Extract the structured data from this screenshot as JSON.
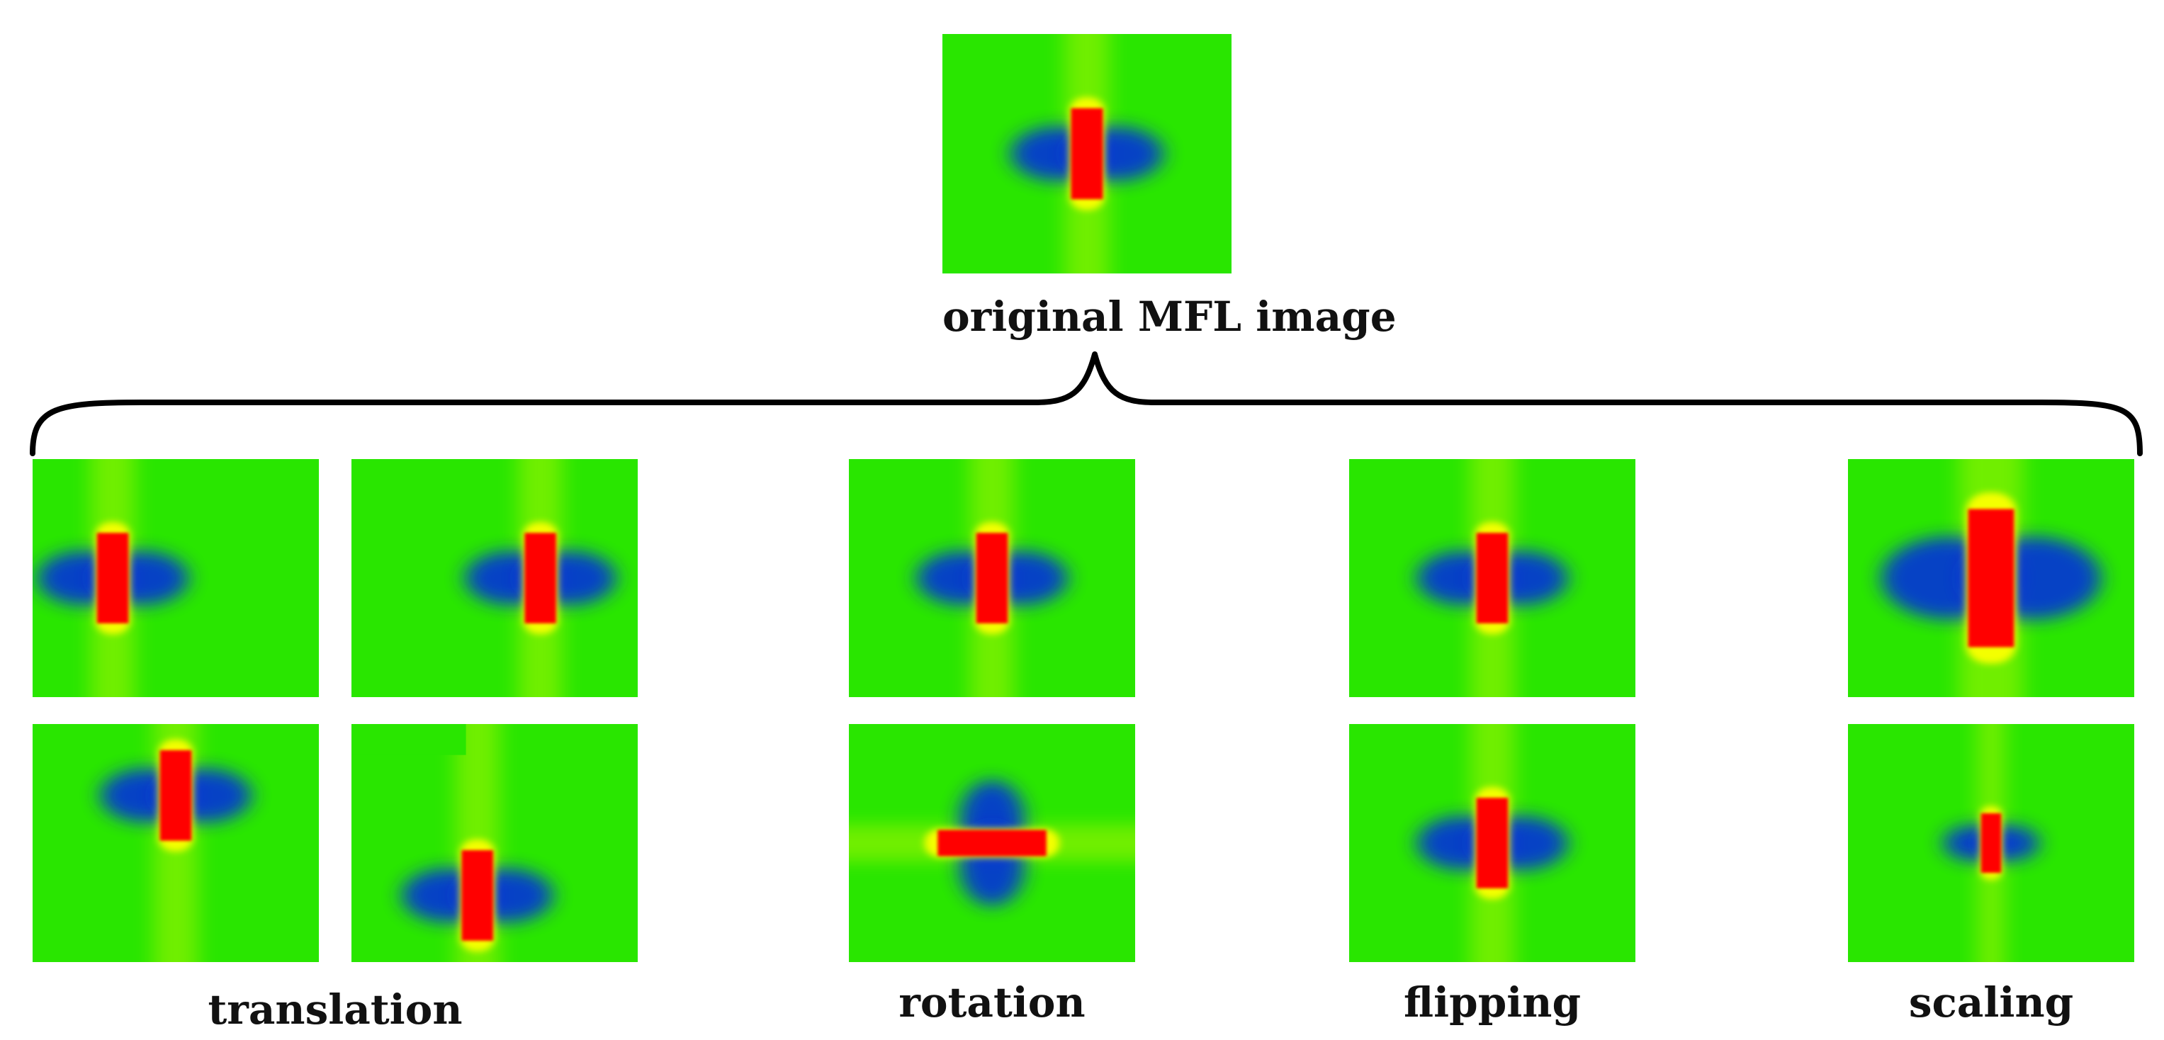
{
  "original": {
    "label": "original MFL image"
  },
  "groups": [
    {
      "key": "translation",
      "label": "translation"
    },
    {
      "key": "rotation",
      "label": "rotation"
    },
    {
      "key": "flipping",
      "label": "flipping"
    },
    {
      "key": "scaling",
      "label": "scaling"
    }
  ],
  "colors": {
    "background": "#29e600",
    "red": "#ff0000",
    "yellow": "#f4ff00",
    "blue": "#0028e8",
    "brace": "#000000"
  }
}
